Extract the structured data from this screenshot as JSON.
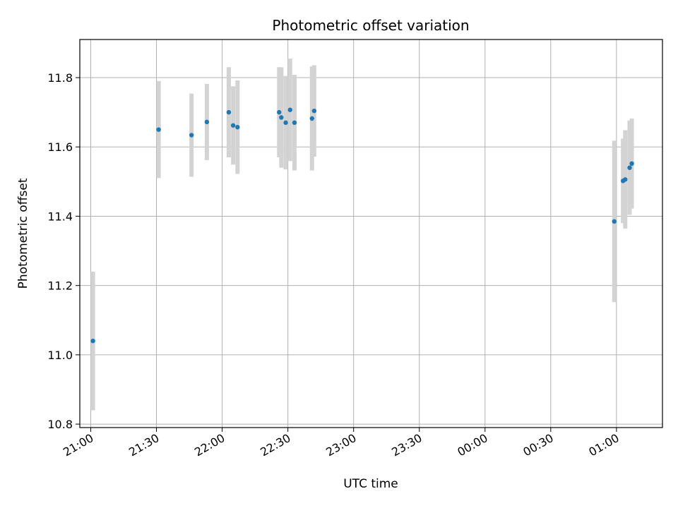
{
  "chart_data": {
    "type": "scatter",
    "title": "Photometric offset variation",
    "xlabel": "UTC time",
    "ylabel": "Photometric offset",
    "grid": true,
    "xlim": [
      "20:55",
      "01:21"
    ],
    "ylim": [
      10.79,
      11.91
    ],
    "xticks": [
      "21:00",
      "21:30",
      "22:00",
      "22:30",
      "23:00",
      "23:30",
      "00:00",
      "00:30",
      "01:00"
    ],
    "yticks": [
      10.8,
      11.0,
      11.2,
      11.4,
      11.6,
      11.8
    ],
    "ytick_labels": [
      "10.8",
      "11.0",
      "11.2",
      "11.4",
      "11.6",
      "11.8"
    ],
    "points": [
      {
        "x": "21:01",
        "y": 11.04,
        "err": 0.2
      },
      {
        "x": "21:31",
        "y": 11.65,
        "err": 0.14
      },
      {
        "x": "21:46",
        "y": 11.634,
        "err": 0.12
      },
      {
        "x": "21:53",
        "y": 11.672,
        "err": 0.11
      },
      {
        "x": "22:03",
        "y": 11.7,
        "err": 0.13
      },
      {
        "x": "22:05",
        "y": 11.662,
        "err": 0.113
      },
      {
        "x": "22:07",
        "y": 11.657,
        "err": 0.135
      },
      {
        "x": "22:26",
        "y": 11.7,
        "err": 0.13
      },
      {
        "x": "22:27",
        "y": 11.685,
        "err": 0.145
      },
      {
        "x": "22:29",
        "y": 11.67,
        "err": 0.135
      },
      {
        "x": "22:31",
        "y": 11.707,
        "err": 0.148
      },
      {
        "x": "22:33",
        "y": 11.67,
        "err": 0.138
      },
      {
        "x": "22:41",
        "y": 11.682,
        "err": 0.15
      },
      {
        "x": "22:42",
        "y": 11.704,
        "err": 0.132
      },
      {
        "x": "00:59",
        "y": 11.385,
        "err": 0.233
      },
      {
        "x": "01:03",
        "y": 11.502,
        "err": 0.122
      },
      {
        "x": "01:04",
        "y": 11.506,
        "err": 0.142
      },
      {
        "x": "01:06",
        "y": 11.54,
        "err": 0.136
      },
      {
        "x": "01:07",
        "y": 11.552,
        "err": 0.13
      }
    ],
    "colors": {
      "marker": "#1f77b4",
      "errorbar": "#d3d3d3",
      "grid": "#b0b0b0"
    }
  }
}
